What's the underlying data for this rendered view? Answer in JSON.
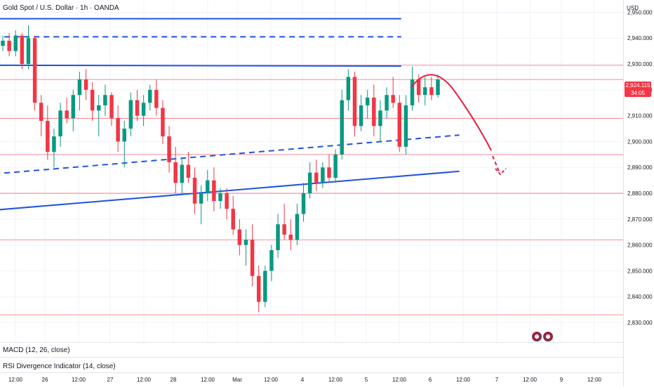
{
  "header": {
    "title": "Gold Spot / U.S. Dollar · 1h · OANDA",
    "currency": "USD"
  },
  "price_tag": {
    "price": "2,924.115",
    "countdown": "34:05",
    "color": "#f23645"
  },
  "panes": {
    "macd_label": "MACD (12, 26, close)",
    "rsi_label": "RSI Divergence Indicator (14, close)"
  },
  "colors": {
    "up": "#089981",
    "down": "#f23645",
    "level_line": "#f23645",
    "trend_line": "#1e53e5",
    "projection": "#e91e3f",
    "grid": "#f0f3fa"
  },
  "chart_data": {
    "type": "candlestick",
    "symbol": "Gold Spot / U.S. Dollar",
    "timeframe": "1h",
    "source": "OANDA",
    "y_axis": {
      "ticks": [
        2830,
        2840,
        2850,
        2860,
        2870,
        2880,
        2890,
        2900,
        2910,
        2920,
        2930,
        2940,
        2950
      ],
      "tick_labels": [
        "2,830.000",
        "2,840.000",
        "2,850.000",
        "2,860.000",
        "2,870.000",
        "2,880.000",
        "2,890.000",
        "2,900.000",
        "2,910.000",
        "2,920.000",
        "2,930.000",
        "2,940.000",
        "2,950.000"
      ],
      "range": [
        2826,
        2956
      ],
      "position": "right"
    },
    "x_axis": {
      "tick_labels": [
        "12:00",
        "26",
        "12:00",
        "27",
        "12:00",
        "28",
        "12:00",
        "Mar",
        "12:00",
        "4",
        "12:00",
        "5",
        "12:00",
        "6",
        "12:00",
        "7",
        "12:00",
        "9",
        "12:00"
      ],
      "range_hours": [
        0,
        253
      ]
    },
    "candles_ohlc": [
      [
        2937,
        2941,
        2935,
        2939
      ],
      [
        2939,
        2942,
        2933,
        2935
      ],
      [
        2935,
        2943,
        2933,
        2941
      ],
      [
        2941,
        2942,
        2928,
        2930
      ],
      [
        2930,
        2945,
        2928,
        2940
      ],
      [
        2940,
        2941,
        2912,
        2915
      ],
      [
        2915,
        2918,
        2902,
        2908
      ],
      [
        2908,
        2914,
        2893,
        2896
      ],
      [
        2896,
        2905,
        2890,
        2902
      ],
      [
        2902,
        2915,
        2898,
        2912
      ],
      [
        2912,
        2917,
        2907,
        2909
      ],
      [
        2909,
        2920,
        2904,
        2918
      ],
      [
        2918,
        2927,
        2912,
        2924
      ],
      [
        2924,
        2928,
        2916,
        2920
      ],
      [
        2920,
        2923,
        2908,
        2912
      ],
      [
        2912,
        2918,
        2902,
        2914
      ],
      [
        2914,
        2922,
        2910,
        2918
      ],
      [
        2918,
        2919,
        2906,
        2909
      ],
      [
        2909,
        2914,
        2896,
        2900
      ],
      [
        2900,
        2908,
        2890,
        2905
      ],
      [
        2905,
        2919,
        2902,
        2916
      ],
      [
        2916,
        2920,
        2908,
        2910
      ],
      [
        2910,
        2918,
        2906,
        2915
      ],
      [
        2915,
        2922,
        2912,
        2920
      ],
      [
        2920,
        2924,
        2910,
        2913
      ],
      [
        2913,
        2916,
        2899,
        2902
      ],
      [
        2902,
        2906,
        2888,
        2892
      ],
      [
        2892,
        2898,
        2880,
        2884
      ],
      [
        2884,
        2894,
        2880,
        2891
      ],
      [
        2891,
        2896,
        2884,
        2886
      ],
      [
        2886,
        2890,
        2872,
        2876
      ],
      [
        2876,
        2883,
        2868,
        2880
      ],
      [
        2880,
        2889,
        2877,
        2885
      ],
      [
        2885,
        2890,
        2873,
        2877
      ],
      [
        2877,
        2882,
        2874,
        2880
      ],
      [
        2880,
        2882,
        2870,
        2874
      ],
      [
        2874,
        2879,
        2864,
        2866
      ],
      [
        2866,
        2870,
        2856,
        2860
      ],
      [
        2860,
        2866,
        2852,
        2862
      ],
      [
        2862,
        2868,
        2844,
        2848
      ],
      [
        2848,
        2852,
        2834,
        2838
      ],
      [
        2838,
        2852,
        2836,
        2850
      ],
      [
        2850,
        2860,
        2846,
        2858
      ],
      [
        2858,
        2872,
        2855,
        2868
      ],
      [
        2868,
        2876,
        2862,
        2864
      ],
      [
        2864,
        2870,
        2858,
        2862
      ],
      [
        2862,
        2876,
        2860,
        2872
      ],
      [
        2872,
        2884,
        2869,
        2880
      ],
      [
        2880,
        2892,
        2878,
        2888
      ],
      [
        2888,
        2893,
        2881,
        2884
      ],
      [
        2884,
        2892,
        2882,
        2890
      ],
      [
        2890,
        2895,
        2884,
        2886
      ],
      [
        2886,
        2897,
        2884,
        2895
      ],
      [
        2895,
        2920,
        2893,
        2916
      ],
      [
        2916,
        2928,
        2912,
        2925
      ],
      [
        2925,
        2927,
        2902,
        2906
      ],
      [
        2906,
        2918,
        2904,
        2914
      ],
      [
        2914,
        2920,
        2909,
        2917
      ],
      [
        2917,
        2922,
        2902,
        2906
      ],
      [
        2906,
        2916,
        2900,
        2912
      ],
      [
        2912,
        2921,
        2909,
        2918
      ],
      [
        2918,
        2925,
        2913,
        2915
      ],
      [
        2915,
        2918,
        2896,
        2898
      ],
      [
        2898,
        2918,
        2895,
        2914
      ],
      [
        2914,
        2929,
        2912,
        2924
      ],
      [
        2924,
        2926,
        2915,
        2918
      ],
      [
        2918,
        2925,
        2914,
        2921
      ],
      [
        2921,
        2925,
        2916,
        2918
      ],
      [
        2918,
        2926,
        2917,
        2924
      ]
    ],
    "horizontal_levels": [
      2955,
      2929.5,
      2924,
      2909,
      2895,
      2880,
      2862,
      2833
    ],
    "trend_lines": [
      {
        "style": "solid",
        "from": [
          -4,
          2947.5
        ],
        "to": [
          164,
          2947.5
        ]
      },
      {
        "style": "dashed",
        "from": [
          -4,
          2940.5
        ],
        "to": [
          164,
          2940.5
        ]
      },
      {
        "style": "solid",
        "from": [
          -4,
          2929.5
        ],
        "to": [
          164,
          2929.2
        ]
      },
      {
        "style": "dashed",
        "from": [
          -4,
          2887.5
        ],
        "to": [
          188,
          2902.5
        ]
      },
      {
        "style": "solid",
        "from": [
          -4,
          2873.5
        ],
        "to": [
          188,
          2888.5
        ]
      }
    ],
    "projection_arc": {
      "points": [
        [
          125,
          2921
        ],
        [
          132,
          2928
        ],
        [
          143,
          2920
        ],
        [
          150,
          2898
        ],
        [
          153,
          2888
        ]
      ],
      "arrow_end": [
        153,
        2887
      ]
    },
    "grid": true
  }
}
